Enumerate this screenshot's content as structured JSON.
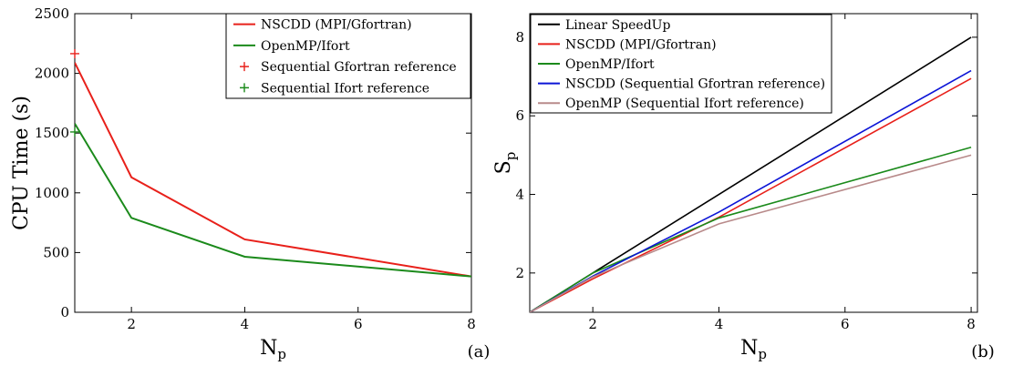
{
  "chart_data": [
    {
      "panel": "(a)",
      "type": "line",
      "xlabel": {
        "main": "N",
        "sub": "p"
      },
      "ylabel": "CPU Time (s)",
      "xlim": [
        1,
        8
      ],
      "ylim": [
        0,
        2500
      ],
      "xticks": [
        2,
        4,
        6,
        8
      ],
      "yticks": [
        0,
        500,
        1000,
        1500,
        2000,
        2500
      ],
      "legend": "top-right",
      "series": [
        {
          "name": "NSCDD (MPI/Gfortran)",
          "color": "#e8201a",
          "kind": "line",
          "x": [
            1,
            2,
            4,
            8
          ],
          "y": [
            2090,
            1130,
            610,
            300
          ]
        },
        {
          "name": "OpenMP/Ifort",
          "color": "#1b8a1b",
          "kind": "line",
          "x": [
            1,
            2,
            4,
            8
          ],
          "y": [
            1580,
            790,
            465,
            300
          ]
        },
        {
          "name": "Sequential Gfortran reference",
          "color": "#e8201a",
          "kind": "marker",
          "x": [
            1
          ],
          "y": [
            2165
          ]
        },
        {
          "name": "Sequential Ifort reference",
          "color": "#1b8a1b",
          "kind": "marker",
          "x": [
            1
          ],
          "y": [
            1510
          ]
        }
      ]
    },
    {
      "panel": "(b)",
      "type": "line",
      "xlabel": {
        "main": "N",
        "sub": "p"
      },
      "ylabel": {
        "main": "S",
        "sub": "p"
      },
      "xlim": [
        1,
        8.1
      ],
      "ylim": [
        1,
        8.6
      ],
      "xticks": [
        2,
        4,
        6,
        8
      ],
      "yticks": [
        2,
        4,
        6,
        8
      ],
      "legend": "top-left",
      "series": [
        {
          "name": "Linear SpeedUp",
          "color": "#000000",
          "kind": "line",
          "x": [
            1,
            2,
            4,
            8
          ],
          "y": [
            1,
            2,
            4,
            8
          ]
        },
        {
          "name": "NSCDD (MPI/Gfortran)",
          "color": "#e8201a",
          "kind": "line",
          "x": [
            1,
            2,
            4,
            8
          ],
          "y": [
            1,
            1.85,
            3.42,
            6.95
          ]
        },
        {
          "name": "OpenMP/Ifort",
          "color": "#1b8a1b",
          "kind": "line",
          "x": [
            1,
            2,
            4,
            8
          ],
          "y": [
            1,
            2.0,
            3.4,
            5.2
          ]
        },
        {
          "name": "NSCDD (Sequential Gfortran reference)",
          "color": "#0b14d6",
          "kind": "line",
          "x": [
            1,
            2,
            4,
            8
          ],
          "y": [
            1,
            1.92,
            3.55,
            7.15
          ]
        },
        {
          "name": "OpenMP (Sequential Ifort reference)",
          "color": "#b88a8a",
          "kind": "line",
          "x": [
            1,
            2,
            4,
            8
          ],
          "y": [
            1,
            1.9,
            3.25,
            5.0
          ]
        }
      ]
    }
  ]
}
